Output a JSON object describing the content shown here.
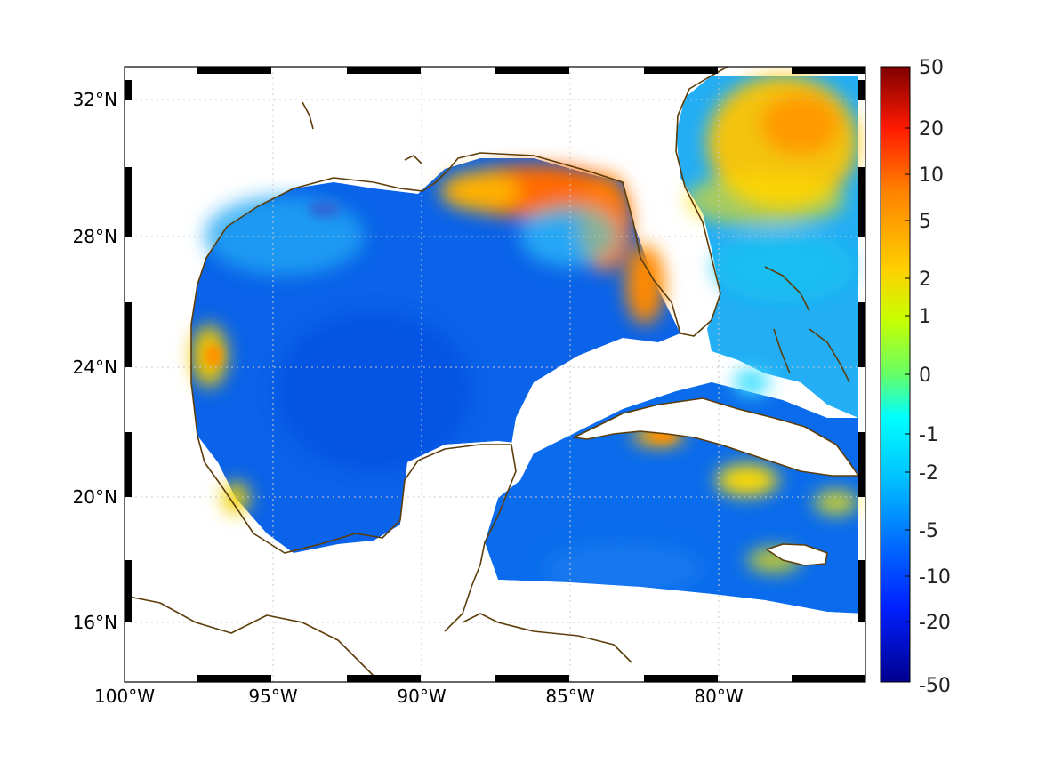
{
  "map": {
    "lon_labels": [
      "100°W",
      "95°W",
      "90°W",
      "85°W",
      "80°W"
    ],
    "lat_labels": [
      "32°N",
      "28°N",
      "24°N",
      "20°N",
      "16°N"
    ],
    "lon_range": [
      -100,
      -75.2
    ],
    "lat_range": [
      14.2,
      33
    ],
    "grid": true,
    "coastline_color": "#5c3d0a"
  },
  "colorbar": {
    "tick_labels": [
      "50",
      "20",
      "10",
      "5",
      "2",
      "1",
      "0",
      "-1",
      "-2",
      "-5",
      "-10",
      "-20",
      "-50"
    ],
    "colors_top_to_bottom": [
      "#7f0000",
      "#ff1a00",
      "#ff8000",
      "#ffd000",
      "#c8ff00",
      "#66ff66",
      "#00ffff",
      "#00c0ff",
      "#0070ff",
      "#0020ff",
      "#00008f"
    ]
  }
}
